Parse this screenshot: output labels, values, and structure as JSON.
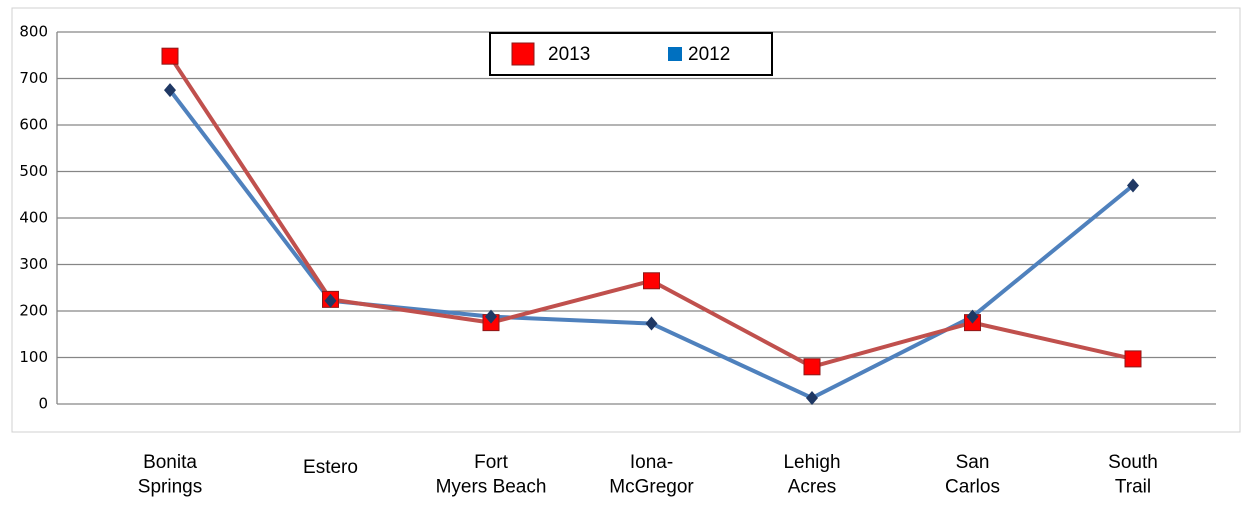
{
  "chart_data": {
    "type": "line",
    "categories": [
      "Bonita\nSprings",
      "Estero",
      "Fort\nMyers Beach",
      "Iona-\nMcGregor",
      "Lehigh\nAcres",
      "San\nCarlos",
      "South\nTrail"
    ],
    "series": [
      {
        "name": "2013",
        "color": "#c0504d",
        "marker": "square",
        "marker_color": "#ff0000",
        "values": [
          748,
          225,
          175,
          265,
          80,
          175,
          97
        ]
      },
      {
        "name": "2012",
        "color": "#4f81bd",
        "marker": "diamond",
        "marker_color": "#1f3864",
        "legend_color": "#0070c0",
        "values": [
          675,
          222,
          188,
          173,
          13,
          188,
          470
        ]
      }
    ],
    "ylim": [
      0,
      800
    ],
    "yticks": [
      0,
      100,
      200,
      300,
      400,
      500,
      600,
      700,
      800
    ],
    "grid": true,
    "legend": "top"
  }
}
